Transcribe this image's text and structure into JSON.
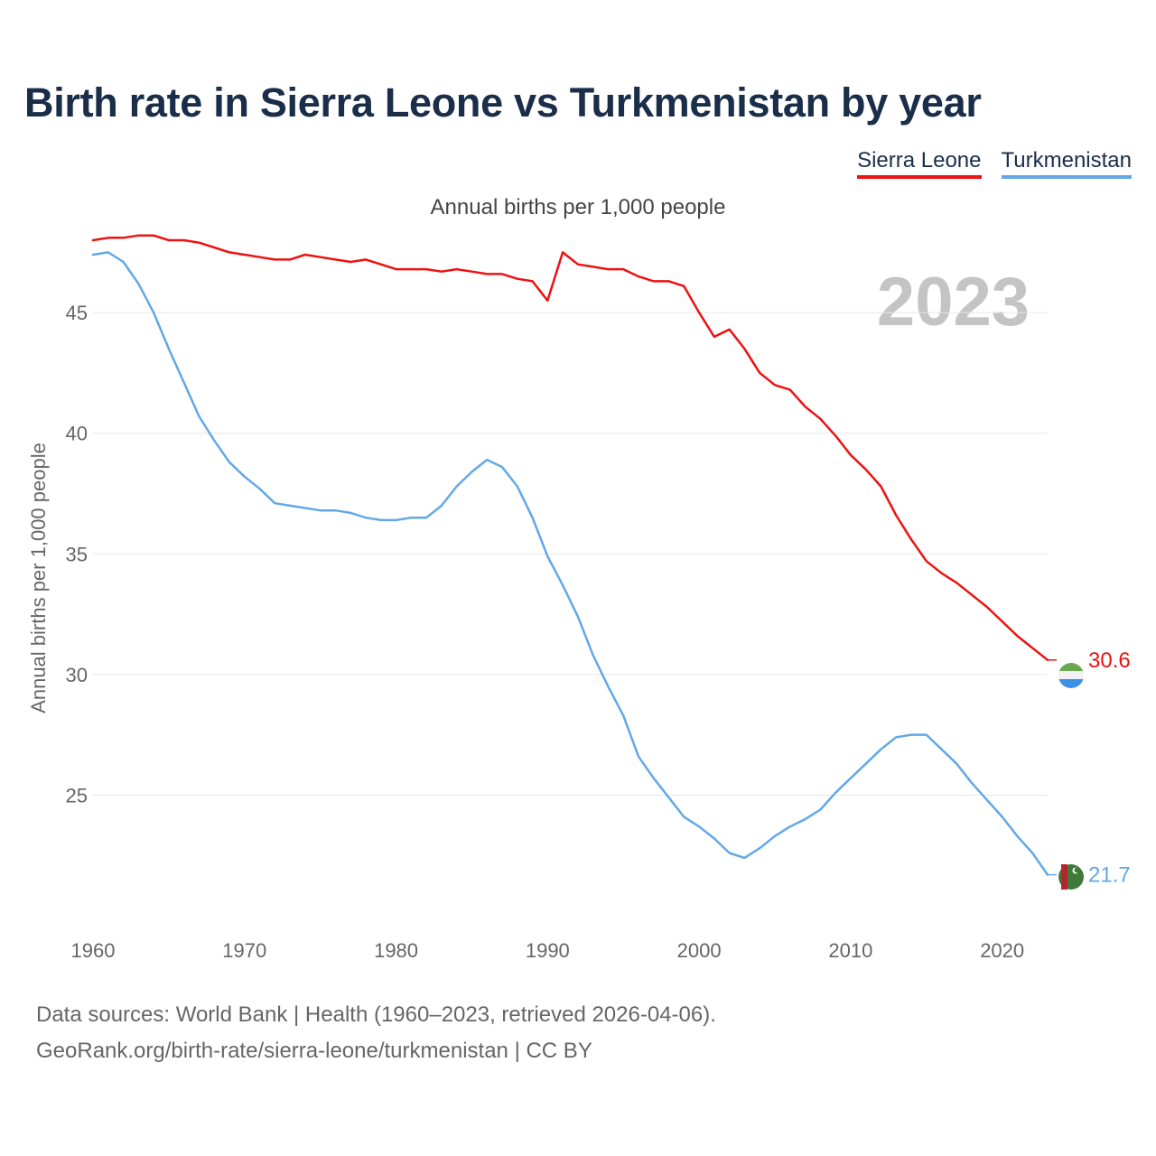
{
  "header": {
    "title": "Birth rate in Sierra Leone vs Turkmenistan by year",
    "subtitle": "Annual births per 1,000 people"
  },
  "legend": [
    {
      "label": "Sierra Leone",
      "color": "#ee1111"
    },
    {
      "label": "Turkmenistan",
      "color": "#62a8e8"
    }
  ],
  "footer": {
    "line1": "Data sources: World Bank | Health (1960–2023, retrieved 2026-04-06).",
    "line2": "GeoRank.org/birth-rate/sierra-leone/turkmenistan | CC BY"
  },
  "chart_data": {
    "type": "line",
    "title": "Birth rate in Sierra Leone vs Turkmenistan by year",
    "subtitle": "Annual births per 1,000 people",
    "ylabel": "Annual births per 1,000 people",
    "xlabel": "",
    "year_watermark": "2023",
    "xlim": [
      1960,
      2023
    ],
    "ylim": [
      20,
      48
    ],
    "x_ticks": [
      1960,
      1970,
      1980,
      1990,
      2000,
      2010,
      2020
    ],
    "y_ticks": [
      25,
      30,
      35,
      40,
      45
    ],
    "x": [
      1960,
      1961,
      1962,
      1963,
      1964,
      1965,
      1966,
      1967,
      1968,
      1969,
      1970,
      1971,
      1972,
      1973,
      1974,
      1975,
      1976,
      1977,
      1978,
      1979,
      1980,
      1981,
      1982,
      1983,
      1984,
      1985,
      1986,
      1987,
      1988,
      1989,
      1990,
      1991,
      1992,
      1993,
      1994,
      1995,
      1996,
      1997,
      1998,
      1999,
      2000,
      2001,
      2002,
      2003,
      2004,
      2005,
      2006,
      2007,
      2008,
      2009,
      2010,
      2011,
      2012,
      2013,
      2014,
      2015,
      2016,
      2017,
      2018,
      2019,
      2020,
      2021,
      2022,
      2023
    ],
    "series": [
      {
        "name": "Sierra Leone",
        "color": "#ee1111",
        "end_label": "30.6",
        "values": [
          48.0,
          48.1,
          48.1,
          48.2,
          48.2,
          48.0,
          48.0,
          47.9,
          47.7,
          47.5,
          47.4,
          47.3,
          47.2,
          47.2,
          47.4,
          47.3,
          47.2,
          47.1,
          47.2,
          47.0,
          46.8,
          46.8,
          46.8,
          46.7,
          46.8,
          46.7,
          46.6,
          46.6,
          46.4,
          46.3,
          45.5,
          47.5,
          47.0,
          46.9,
          46.8,
          46.8,
          46.5,
          46.3,
          46.3,
          46.1,
          45.0,
          44.0,
          44.3,
          43.5,
          42.5,
          42.0,
          41.8,
          41.1,
          40.6,
          39.9,
          39.1,
          38.5,
          37.8,
          36.6,
          35.6,
          34.7,
          34.2,
          33.8,
          33.3,
          32.8,
          32.2,
          31.6,
          31.1,
          30.6
        ]
      },
      {
        "name": "Turkmenistan",
        "color": "#62a8e8",
        "end_label": "21.7",
        "values": [
          47.4,
          47.5,
          47.1,
          46.2,
          45.0,
          43.5,
          42.1,
          40.7,
          39.7,
          38.8,
          38.2,
          37.7,
          37.1,
          37.0,
          36.9,
          36.8,
          36.8,
          36.7,
          36.5,
          36.4,
          36.4,
          36.5,
          36.5,
          37.0,
          37.8,
          38.4,
          38.9,
          38.6,
          37.8,
          36.5,
          34.9,
          33.7,
          32.4,
          30.8,
          29.5,
          28.3,
          26.6,
          25.7,
          24.9,
          24.1,
          23.7,
          23.2,
          22.6,
          22.4,
          22.8,
          23.3,
          23.7,
          24.0,
          24.4,
          25.1,
          25.7,
          26.3,
          26.9,
          27.4,
          27.5,
          27.5,
          26.9,
          26.3,
          25.5,
          24.8,
          24.1,
          23.3,
          22.6,
          21.7
        ]
      }
    ]
  }
}
